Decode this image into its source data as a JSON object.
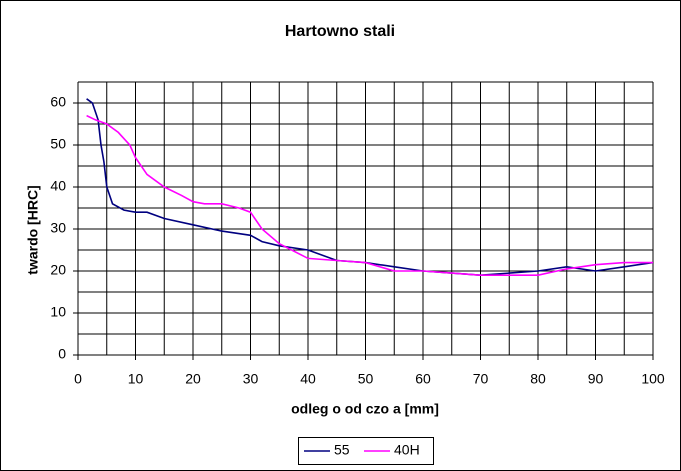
{
  "chart_data": {
    "type": "line",
    "title": "Hartowno      stali",
    "xlabel": "odleg o     od czo a [mm]",
    "ylabel": "twardo     [HRC]",
    "xlim": [
      0,
      100
    ],
    "xticks": [
      0,
      10,
      20,
      30,
      40,
      50,
      60,
      70,
      80,
      90,
      100
    ],
    "xminor": [
      5,
      15,
      25,
      35,
      45,
      55,
      65,
      75,
      85,
      95
    ],
    "ylim": [
      0,
      65
    ],
    "yticks": [
      0,
      10,
      20,
      30,
      40,
      50,
      60
    ],
    "yminor": [
      5,
      15,
      25,
      35,
      45,
      55,
      65
    ],
    "grid": true,
    "legend": "bottom",
    "series": [
      {
        "name": "55",
        "color": "#000080",
        "x": [
          1.5,
          2.5,
          3.5,
          4,
          4.5,
          5,
          6,
          8,
          10,
          12,
          15,
          20,
          25,
          30,
          32,
          35,
          40,
          45,
          50,
          55,
          60,
          65,
          70,
          75,
          80,
          85,
          90,
          95,
          100
        ],
        "values": [
          61,
          60,
          56,
          50,
          46,
          40,
          36,
          34.5,
          34,
          34,
          32.5,
          31,
          29.5,
          28.5,
          27,
          26,
          25,
          22.5,
          22,
          21,
          20,
          19.5,
          19,
          19.5,
          20,
          21,
          20,
          21,
          22
        ]
      },
      {
        "name": "40H",
        "color": "#ff00ff",
        "x": [
          1.5,
          3,
          5,
          7,
          9,
          10,
          12,
          15,
          18,
          20,
          22,
          25,
          28,
          30,
          32,
          35,
          40,
          45,
          50,
          55,
          60,
          65,
          70,
          75,
          80,
          85,
          90,
          95,
          100
        ],
        "values": [
          57,
          56,
          55,
          53,
          50,
          47,
          43,
          40,
          38,
          36.5,
          36,
          36,
          35,
          34,
          30,
          26.5,
          23,
          22.5,
          22,
          20,
          20,
          19.5,
          19,
          19,
          19,
          20.5,
          21.5,
          22,
          22
        ]
      }
    ]
  }
}
